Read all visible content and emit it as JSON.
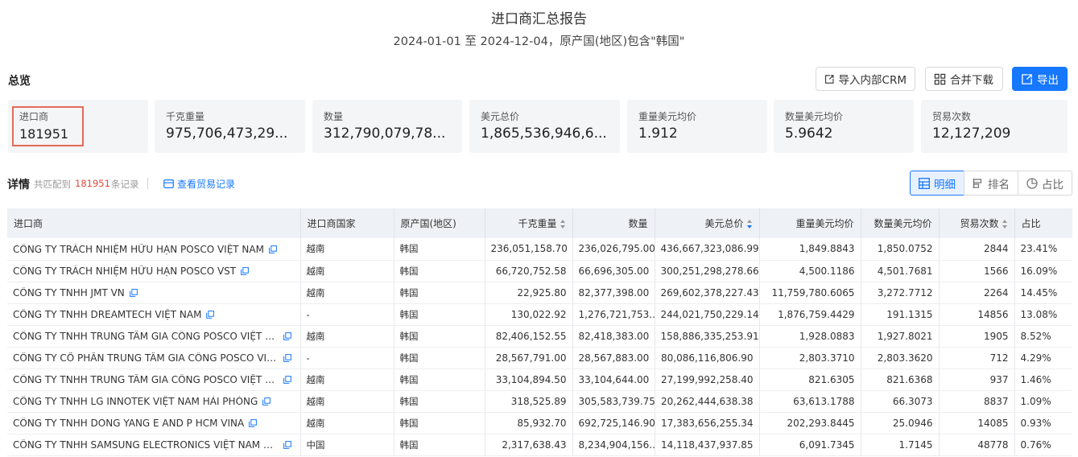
{
  "report": {
    "title": "进口商汇总报告",
    "subtitle": "2024-01-01 至 2024-12-04，原产国(地区)包含\"韩国\""
  },
  "overview": {
    "label": "总览",
    "buttons": {
      "crm": "导入内部CRM",
      "merge": "合并下载",
      "export": "导出"
    },
    "stats": [
      {
        "label": "进口商",
        "value": "181951"
      },
      {
        "label": "千克重量",
        "value": "975,706,473,29..."
      },
      {
        "label": "数量",
        "value": "312,790,079,78..."
      },
      {
        "label": "美元总价",
        "value": "1,865,536,946,6..."
      },
      {
        "label": "重量美元均价",
        "value": "1.912"
      },
      {
        "label": "数量美元均价",
        "value": "5.9642"
      },
      {
        "label": "贸易次数",
        "value": "12,127,209"
      }
    ]
  },
  "details": {
    "label": "详情",
    "match_prefix": "共匹配到",
    "match_count": "181951",
    "match_suffix": "条记录",
    "view_trade": "查看贸易记录",
    "views": {
      "detail": "明细",
      "rank": "排名",
      "share": "占比"
    }
  },
  "table": {
    "headers": [
      "进口商",
      "进口商国家",
      "原产国(地区)",
      "千克重量",
      "数量",
      "美元总价",
      "重量美元均价",
      "数量美元均价",
      "贸易次数",
      "占比"
    ],
    "rows": [
      [
        "CÔNG TY TRÁCH NHIỆM HỮU HẠN POSCO VIỆT NAM",
        "越南",
        "韩国",
        "236,051,158.70",
        "236,026,795.00",
        "436,667,323,086.99",
        "1,849.8843",
        "1,850.0752",
        "2844",
        "23.41%"
      ],
      [
        "CÔNG TY TRÁCH NHIỆM HỮU HẠN POSCO VST",
        "越南",
        "韩国",
        "66,720,752.58",
        "66,696,305.00",
        "300,251,298,278.66",
        "4,500.1186",
        "4,501.7681",
        "1566",
        "16.09%"
      ],
      [
        "CÔNG TY TNHH JMT VN",
        "越南",
        "韩国",
        "22,925.80",
        "82,377,398.00",
        "269,602,378,227.43",
        "11,759,780.6065",
        "3,272.7712",
        "2264",
        "14.45%"
      ],
      [
        "CÔNG TY TNHH DREAMTECH VIỆT NAM",
        "-",
        "韩国",
        "130,022.92",
        "1,276,721,753....",
        "244,021,750,229.14",
        "1,876,759.4429",
        "191.1315",
        "14856",
        "13.08%"
      ],
      [
        "CÔNG TY TNHH TRUNG TÂM GIA CÔNG POSCO VIỆT NAM...",
        "越南",
        "韩国",
        "82,406,152.55",
        "82,418,383.00",
        "158,886,335,253.91",
        "1,928.0883",
        "1,927.8021",
        "1905",
        "8.52%"
      ],
      [
        "CÔNG TY CỔ PHẦN TRUNG TÂM GIA CÔNG POSCO VIỆT N...",
        "-",
        "韩国",
        "28,567,791.00",
        "28,567,883.00",
        "80,086,116,806.90",
        "2,803.3710",
        "2,803.3620",
        "712",
        "4.29%"
      ],
      [
        "CÔNG TY TNHH TRUNG TÂM GIA CÔNG POSCO VIỆT NAM",
        "越南",
        "韩国",
        "33,104,894.50",
        "33,104,644.00",
        "27,199,992,258.40",
        "821.6305",
        "821.6368",
        "937",
        "1.46%"
      ],
      [
        "CÔNG TY TNHH LG INNOTEK VIỆT NAM HẢI PHÒNG",
        "越南",
        "韩国",
        "318,525.89",
        "305,583,739.75",
        "20,262,444,638.38",
        "63,613.1788",
        "66.3073",
        "8837",
        "1.09%"
      ],
      [
        "CÔNG TY TNHH DONG YANG E AND P HCM VINA",
        "越南",
        "韩国",
        "85,932.70",
        "692,725,146.90",
        "17,383,656,255.34",
        "202,293.8445",
        "25.0946",
        "14085",
        "0.93%"
      ],
      [
        "CÔNG TY TNHH SAMSUNG ELECTRONICS VIỆT NAM THÁI ...",
        "中国",
        "韩国",
        "2,317,638.43",
        "8,234,904,156....",
        "14,118,437,937.85",
        "6,091.7345",
        "1.7145",
        "48778",
        "0.76%"
      ]
    ]
  },
  "colors": {
    "accent": "#1677ff",
    "highlight_border": "#e36b5a",
    "count_red": "#e0483a"
  }
}
